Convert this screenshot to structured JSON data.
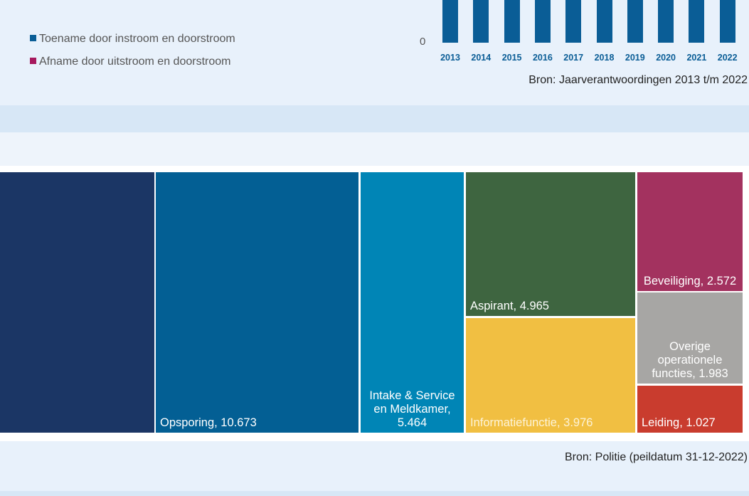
{
  "chart_data": [
    {
      "type": "bar",
      "legend": [
        {
          "name": "Toename door instroom en doorstroom",
          "color": "#0a5d96"
        },
        {
          "name": "Afname door uitstroom en doorstroom",
          "color": "#a6195e"
        }
      ],
      "categories": [
        "2013",
        "2014",
        "2015",
        "2016",
        "2017",
        "2018",
        "2019",
        "2020",
        "2021",
        "2022"
      ],
      "yticks": [
        0
      ],
      "color": "#0a5d96",
      "source": "Bron: Jaarverantwoordingen 2013 t/m 2022"
    },
    {
      "type": "treemap",
      "labels": [
        null,
        "Opsporing, 10.673",
        "Intake & Service en Meldkamer, 5.464",
        "Aspirant, 4.965",
        "Informatiefunctie, 3.976",
        "Beveiliging, 2.572",
        "Overige operationele functies, 1.983",
        "Leiding, 1.027"
      ],
      "values": [
        8100,
        10673,
        5464,
        4965,
        3976,
        2572,
        1983,
        1027
      ],
      "colors": [
        "#1b3665",
        "#035f94",
        "#0085b6",
        "#3e6540",
        "#f1bf42",
        "#a3325f",
        "#a7a6a4",
        "#c93c2e"
      ],
      "source": "Bron: Politie (peildatum 31-12-2022)"
    }
  ]
}
